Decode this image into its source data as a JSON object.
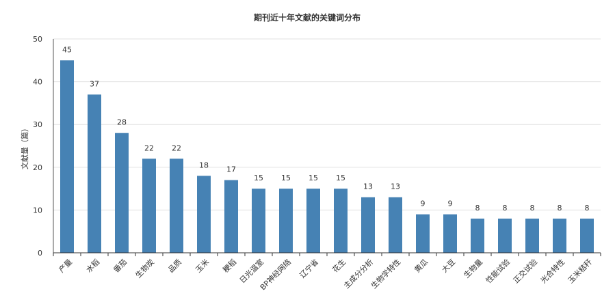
{
  "chart_data": {
    "type": "bar",
    "title": "期刊近十年文献的关键词分布",
    "ylabel": "文献量（篇）",
    "xlabel": "",
    "ylim": [
      0,
      50
    ],
    "yticks": [
      0,
      10,
      20,
      30,
      40,
      50
    ],
    "grid": true,
    "bar_color": "#4682b4",
    "categories": [
      "产量",
      "水稻",
      "番茄",
      "生物炭",
      "品质",
      "玉米",
      "粳稻",
      "日光温室",
      "BP神经网络",
      "辽宁省",
      "花生",
      "主成分分析",
      "生物学特性",
      "黄瓜",
      "大豆",
      "生物量",
      "性能试验",
      "正交试验",
      "光合特性",
      "玉米秸秆"
    ],
    "values": [
      45,
      37,
      28,
      22,
      22,
      18,
      17,
      15,
      15,
      15,
      15,
      13,
      13,
      9,
      9,
      8,
      8,
      8,
      8,
      8
    ]
  }
}
